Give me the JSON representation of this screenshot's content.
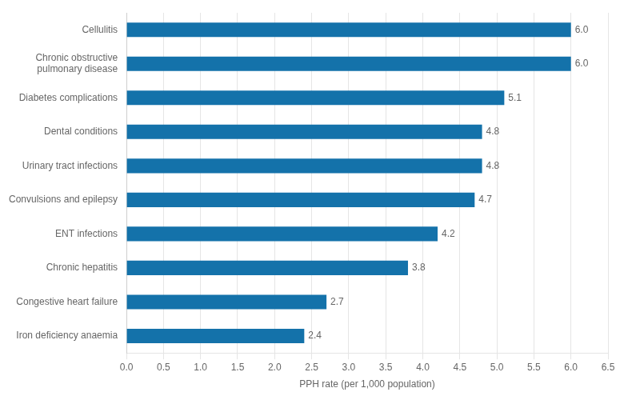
{
  "chart_data": {
    "type": "bar",
    "orientation": "horizontal",
    "categories": [
      "Iron deficiency anaemia",
      "Congestive heart failure",
      "Chronic hepatitis",
      "ENT infections",
      "Convulsions and epilepsy",
      "Urinary tract infections",
      "Dental conditions",
      "Diabetes complications",
      "Chronic obstructive\npulmonary disease",
      "Cellulitis"
    ],
    "values": [
      2.4,
      2.7,
      3.8,
      4.2,
      4.7,
      4.8,
      4.8,
      5.1,
      6.0,
      6.0
    ],
    "value_labels": [
      "2.4",
      "2.7",
      "3.8",
      "4.2",
      "4.7",
      "4.8",
      "4.8",
      "5.1",
      "6.0",
      "6.0"
    ],
    "data_labels": true,
    "color": "#1472AA",
    "xlabel": "PPH rate (per 1,000 population)",
    "xlim": [
      0,
      6.5
    ],
    "xticks": [
      {
        "value": 0,
        "label": "0.0"
      },
      0.5,
      {
        "value": 1,
        "label": "1.0"
      },
      1.5,
      {
        "value": 2,
        "label": "2.0"
      },
      2.5,
      {
        "value": 3,
        "label": "3.0"
      },
      3.5,
      {
        "value": 4,
        "label": "4.0"
      },
      4.5,
      {
        "value": 5,
        "label": "5.0"
      },
      5.5,
      {
        "value": 6,
        "label": "6.0"
      },
      6.5
    ],
    "grid": true
  }
}
